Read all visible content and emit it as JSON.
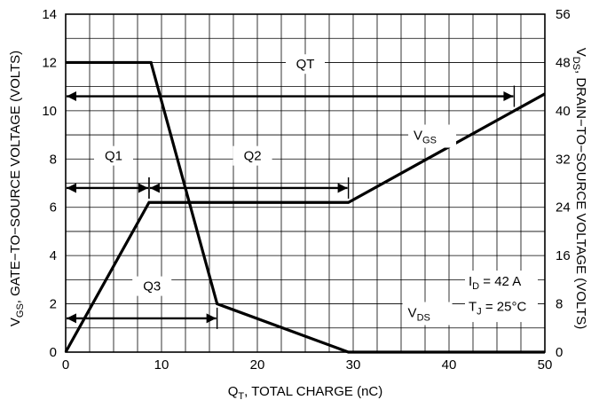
{
  "chart_data": {
    "type": "line",
    "xlabel": {
      "main": "Q",
      "sub": "T",
      "rest": ", TOTAL CHARGE (nC)"
    },
    "ylabel_left": {
      "main": "V",
      "sub": "GS",
      "rest": ", GATE−TO−SOURCE VOLTAGE (VOLTS)"
    },
    "ylabel_right": {
      "main": "V",
      "sub": "DS",
      "rest": ", DRAIN−TO−SOURCE VOLTAGE (VOLTS)"
    },
    "x_ticks": [
      "0",
      "10",
      "20",
      "30",
      "40",
      "50"
    ],
    "y_left_ticks": [
      "0",
      "2",
      "4",
      "6",
      "8",
      "10",
      "12",
      "14"
    ],
    "y_right_ticks": [
      "0",
      "8",
      "16",
      "24",
      "32",
      "40",
      "48",
      "56"
    ],
    "xlim": [
      0,
      50
    ],
    "ylim_left": [
      0,
      14
    ],
    "ylim_right": [
      0,
      56
    ],
    "grid": true,
    "series": [
      {
        "name": "VGS",
        "label_main": "V",
        "label_sub": "GS",
        "axis": "left",
        "x": [
          0,
          8.7,
          29.5,
          50
        ],
        "y": [
          0,
          6.2,
          6.2,
          10.7
        ]
      },
      {
        "name": "VDS",
        "label_main": "V",
        "label_sub": "DS",
        "axis": "right",
        "x": [
          0,
          8.9,
          15.8,
          29.5,
          50
        ],
        "y": [
          48,
          48,
          8,
          0,
          0
        ]
      }
    ],
    "spans": [
      {
        "label": "QT",
        "x0": 0,
        "x1": 46.8,
        "y_left": 10.6,
        "label_x": 25
      },
      {
        "label": "Q1",
        "x0": 0,
        "x1": 8.7,
        "y_left": 6.8,
        "label_x": 5
      },
      {
        "label": "Q2",
        "x0": 8.7,
        "x1": 29.5,
        "y_left": 6.8,
        "label_x": 19.5
      },
      {
        "label": "Q3",
        "x0": 0,
        "x1": 15.8,
        "y_left": 1.4,
        "label_x": 9
      }
    ],
    "conditions": [
      {
        "main": "I",
        "sub": "D",
        "rest": " = 42 A"
      },
      {
        "main": "T",
        "sub": "J",
        "rest": " = 25°C"
      }
    ]
  }
}
